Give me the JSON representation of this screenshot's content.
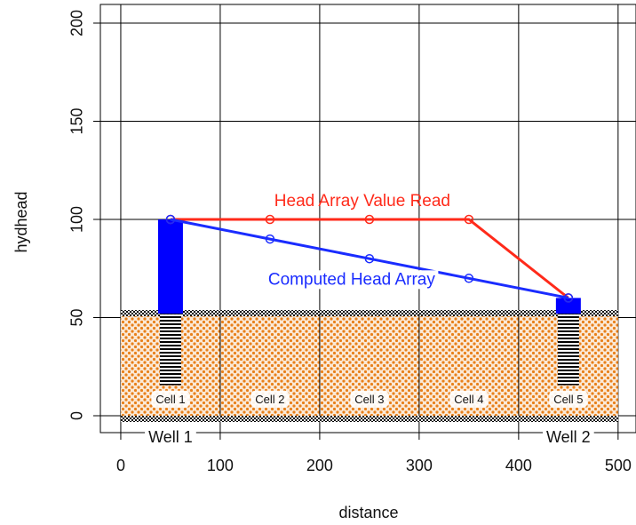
{
  "chart_data": {
    "type": "line",
    "x_label": "distance",
    "y_label": "hydhead",
    "x": [
      50,
      150,
      250,
      350,
      450
    ],
    "series": [
      {
        "name": "Head Array Value Read",
        "color": "#ff2a1a",
        "values": [
          100,
          100,
          100,
          100,
          60
        ]
      },
      {
        "name": "Computed Head Array",
        "color": "#1a2cff",
        "values": [
          100,
          90,
          80,
          70,
          60
        ]
      }
    ],
    "cells": [
      "Cell 1",
      "Cell 2",
      "Cell 3",
      "Cell 4",
      "Cell 5"
    ],
    "wells": [
      "Well 1",
      "Well 2"
    ],
    "well_color": "#0000ff",
    "aquifer": {
      "top": 52,
      "bottom": 0,
      "color": "#e8801a"
    },
    "xlim": [
      -20.5,
      518
    ],
    "ylim": [
      -8.6,
      209.5
    ],
    "xticks": [
      0,
      100,
      200,
      300,
      400,
      500
    ],
    "yticks": [
      0,
      50,
      100,
      150,
      200
    ],
    "grid": true
  }
}
